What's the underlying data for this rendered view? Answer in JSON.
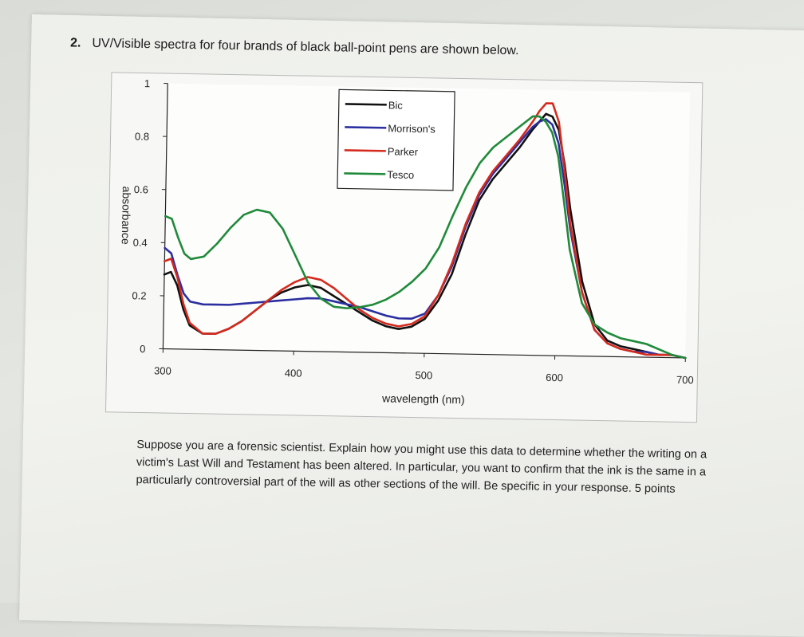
{
  "question": {
    "number": "2.",
    "text": "UV/Visible spectra for four brands of black ball-point pens are shown below."
  },
  "prompt": "Suppose you are a forensic scientist. Explain how you might use this data to determine whether the writing on a victim's Last Will and Testament has been altered. In particular, you want to confirm that the ink is the same in a particularly controversial part of the will as other sections of the will. Be specific in your response. 5 points",
  "chart_data": {
    "type": "line",
    "xlabel": "wavelength (nm)",
    "ylabel": "absorbance",
    "xlim": [
      300,
      700
    ],
    "ylim": [
      0,
      1
    ],
    "xticks": [
      "300",
      "400",
      "500",
      "600",
      "700"
    ],
    "yticks": [
      "0",
      "0.2",
      "0.4",
      "0.6",
      "0.8",
      "1"
    ],
    "legend_position": "top-center",
    "grid": false,
    "x": [
      300,
      305,
      310,
      315,
      320,
      330,
      340,
      350,
      360,
      370,
      380,
      390,
      400,
      410,
      420,
      430,
      440,
      450,
      460,
      470,
      480,
      490,
      500,
      510,
      520,
      530,
      540,
      550,
      560,
      570,
      580,
      585,
      590,
      595,
      600,
      605,
      610,
      620,
      630,
      640,
      650,
      660,
      670,
      680,
      690,
      700
    ],
    "series": [
      {
        "name": "Bic",
        "color": "#111111",
        "values": [
          0.28,
          0.29,
          0.24,
          0.15,
          0.09,
          0.06,
          0.06,
          0.08,
          0.11,
          0.15,
          0.19,
          0.22,
          0.24,
          0.25,
          0.24,
          0.21,
          0.18,
          0.15,
          0.12,
          0.1,
          0.09,
          0.1,
          0.13,
          0.2,
          0.3,
          0.45,
          0.58,
          0.66,
          0.72,
          0.78,
          0.85,
          0.88,
          0.91,
          0.9,
          0.85,
          0.72,
          0.55,
          0.28,
          0.12,
          0.06,
          0.04,
          0.03,
          0.02,
          0.01,
          0.01,
          0.0
        ]
      },
      {
        "name": "Morrison's",
        "color": "#2b2fa0",
        "values": [
          0.38,
          0.36,
          0.28,
          0.21,
          0.18,
          0.17,
          0.17,
          0.17,
          0.175,
          0.18,
          0.185,
          0.19,
          0.195,
          0.2,
          0.2,
          0.19,
          0.18,
          0.17,
          0.155,
          0.14,
          0.13,
          0.13,
          0.15,
          0.22,
          0.33,
          0.48,
          0.6,
          0.68,
          0.74,
          0.8,
          0.86,
          0.88,
          0.89,
          0.87,
          0.8,
          0.65,
          0.48,
          0.24,
          0.1,
          0.05,
          0.03,
          0.02,
          0.02,
          0.01,
          0.01,
          0.0
        ]
      },
      {
        "name": "Parker",
        "color": "#d42a1e",
        "values": [
          0.33,
          0.34,
          0.27,
          0.17,
          0.1,
          0.06,
          0.06,
          0.08,
          0.11,
          0.15,
          0.19,
          0.23,
          0.26,
          0.28,
          0.27,
          0.24,
          0.2,
          0.16,
          0.13,
          0.11,
          0.1,
          0.11,
          0.14,
          0.22,
          0.34,
          0.49,
          0.61,
          0.69,
          0.75,
          0.81,
          0.88,
          0.92,
          0.95,
          0.95,
          0.88,
          0.7,
          0.5,
          0.24,
          0.1,
          0.05,
          0.03,
          0.02,
          0.01,
          0.01,
          0.01,
          0.0
        ]
      },
      {
        "name": "Tesco",
        "color": "#1f8a3a",
        "values": [
          0.5,
          0.49,
          0.42,
          0.36,
          0.34,
          0.35,
          0.4,
          0.46,
          0.51,
          0.53,
          0.52,
          0.46,
          0.36,
          0.26,
          0.2,
          0.17,
          0.165,
          0.17,
          0.18,
          0.2,
          0.23,
          0.27,
          0.32,
          0.4,
          0.52,
          0.63,
          0.72,
          0.78,
          0.82,
          0.86,
          0.9,
          0.9,
          0.88,
          0.84,
          0.75,
          0.58,
          0.4,
          0.2,
          0.12,
          0.09,
          0.07,
          0.06,
          0.05,
          0.03,
          0.01,
          0.0
        ]
      }
    ]
  }
}
